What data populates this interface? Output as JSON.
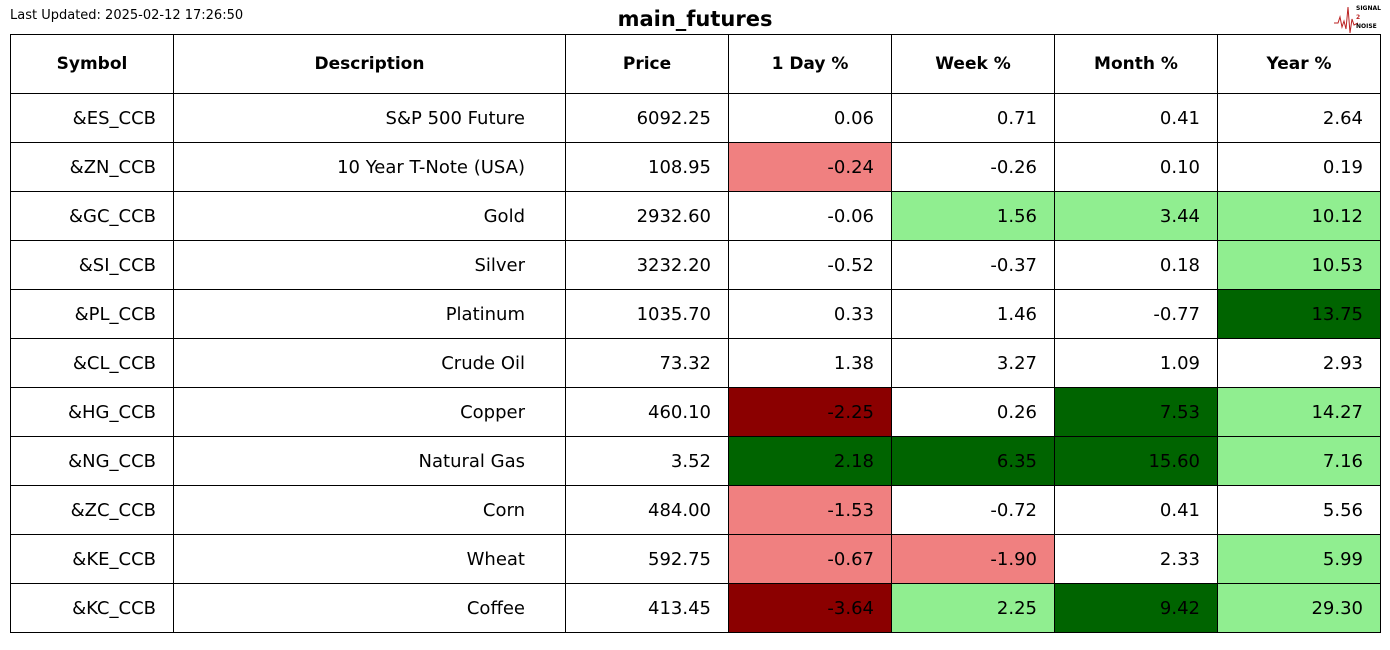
{
  "header": {
    "last_updated": "Last Updated: 2025-02-12 17:26:50",
    "title": "main_futures",
    "logo": [
      "SIGNAL",
      "2",
      "NOISE"
    ]
  },
  "table": {
    "columns": [
      "Symbol",
      "Description",
      "Price",
      "1 Day %",
      "Week %",
      "Month %",
      "Year %"
    ],
    "rows": [
      [
        "&ES_CCB",
        "S&P 500 Future",
        "6092.25",
        "0.06",
        "0.71",
        "0.41",
        "2.64"
      ],
      [
        "&ZN_CCB",
        "10 Year T-Note (USA)",
        "108.95",
        "-0.24",
        "-0.26",
        "0.10",
        "0.19"
      ],
      [
        "&GC_CCB",
        "Gold",
        "2932.60",
        "-0.06",
        "1.56",
        "3.44",
        "10.12"
      ],
      [
        "&SI_CCB",
        "Silver",
        "3232.20",
        "-0.52",
        "-0.37",
        "0.18",
        "10.53"
      ],
      [
        "&PL_CCB",
        "Platinum",
        "1035.70",
        "0.33",
        "1.46",
        "-0.77",
        "13.75"
      ],
      [
        "&CL_CCB",
        "Crude Oil",
        "73.32",
        "1.38",
        "3.27",
        "1.09",
        "2.93"
      ],
      [
        "&HG_CCB",
        "Copper",
        "460.10",
        "-2.25",
        "0.26",
        "7.53",
        "14.27"
      ],
      [
        "&NG_CCB",
        "Natural Gas",
        "3.52",
        "2.18",
        "6.35",
        "15.60",
        "7.16"
      ],
      [
        "&ZC_CCB",
        "Corn",
        "484.00",
        "-1.53",
        "-0.72",
        "0.41",
        "5.56"
      ],
      [
        "&KE_CCB",
        "Wheat",
        "592.75",
        "-0.67",
        "-1.90",
        "2.33",
        "5.99"
      ],
      [
        "&KC_CCB",
        "Coffee",
        "413.45",
        "-3.64",
        "2.25",
        "9.42",
        "29.30"
      ]
    ],
    "change_colors": [
      [
        "white",
        "white",
        "white",
        "white"
      ],
      [
        "lightcoral",
        "white",
        "white",
        "white"
      ],
      [
        "white",
        "lightgreen",
        "lightgreen",
        "lightgreen"
      ],
      [
        "white",
        "white",
        "white",
        "lightgreen"
      ],
      [
        "white",
        "white",
        "white",
        "darkgreen"
      ],
      [
        "white",
        "white",
        "white",
        "white"
      ],
      [
        "darkred",
        "white",
        "darkgreen",
        "lightgreen"
      ],
      [
        "darkgreen",
        "darkgreen",
        "darkgreen",
        "lightgreen"
      ],
      [
        "lightcoral",
        "white",
        "white",
        "white"
      ],
      [
        "lightcoral",
        "lightcoral",
        "white",
        "lightgreen"
      ],
      [
        "darkred",
        "lightgreen",
        "darkgreen",
        "lightgreen"
      ]
    ]
  }
}
